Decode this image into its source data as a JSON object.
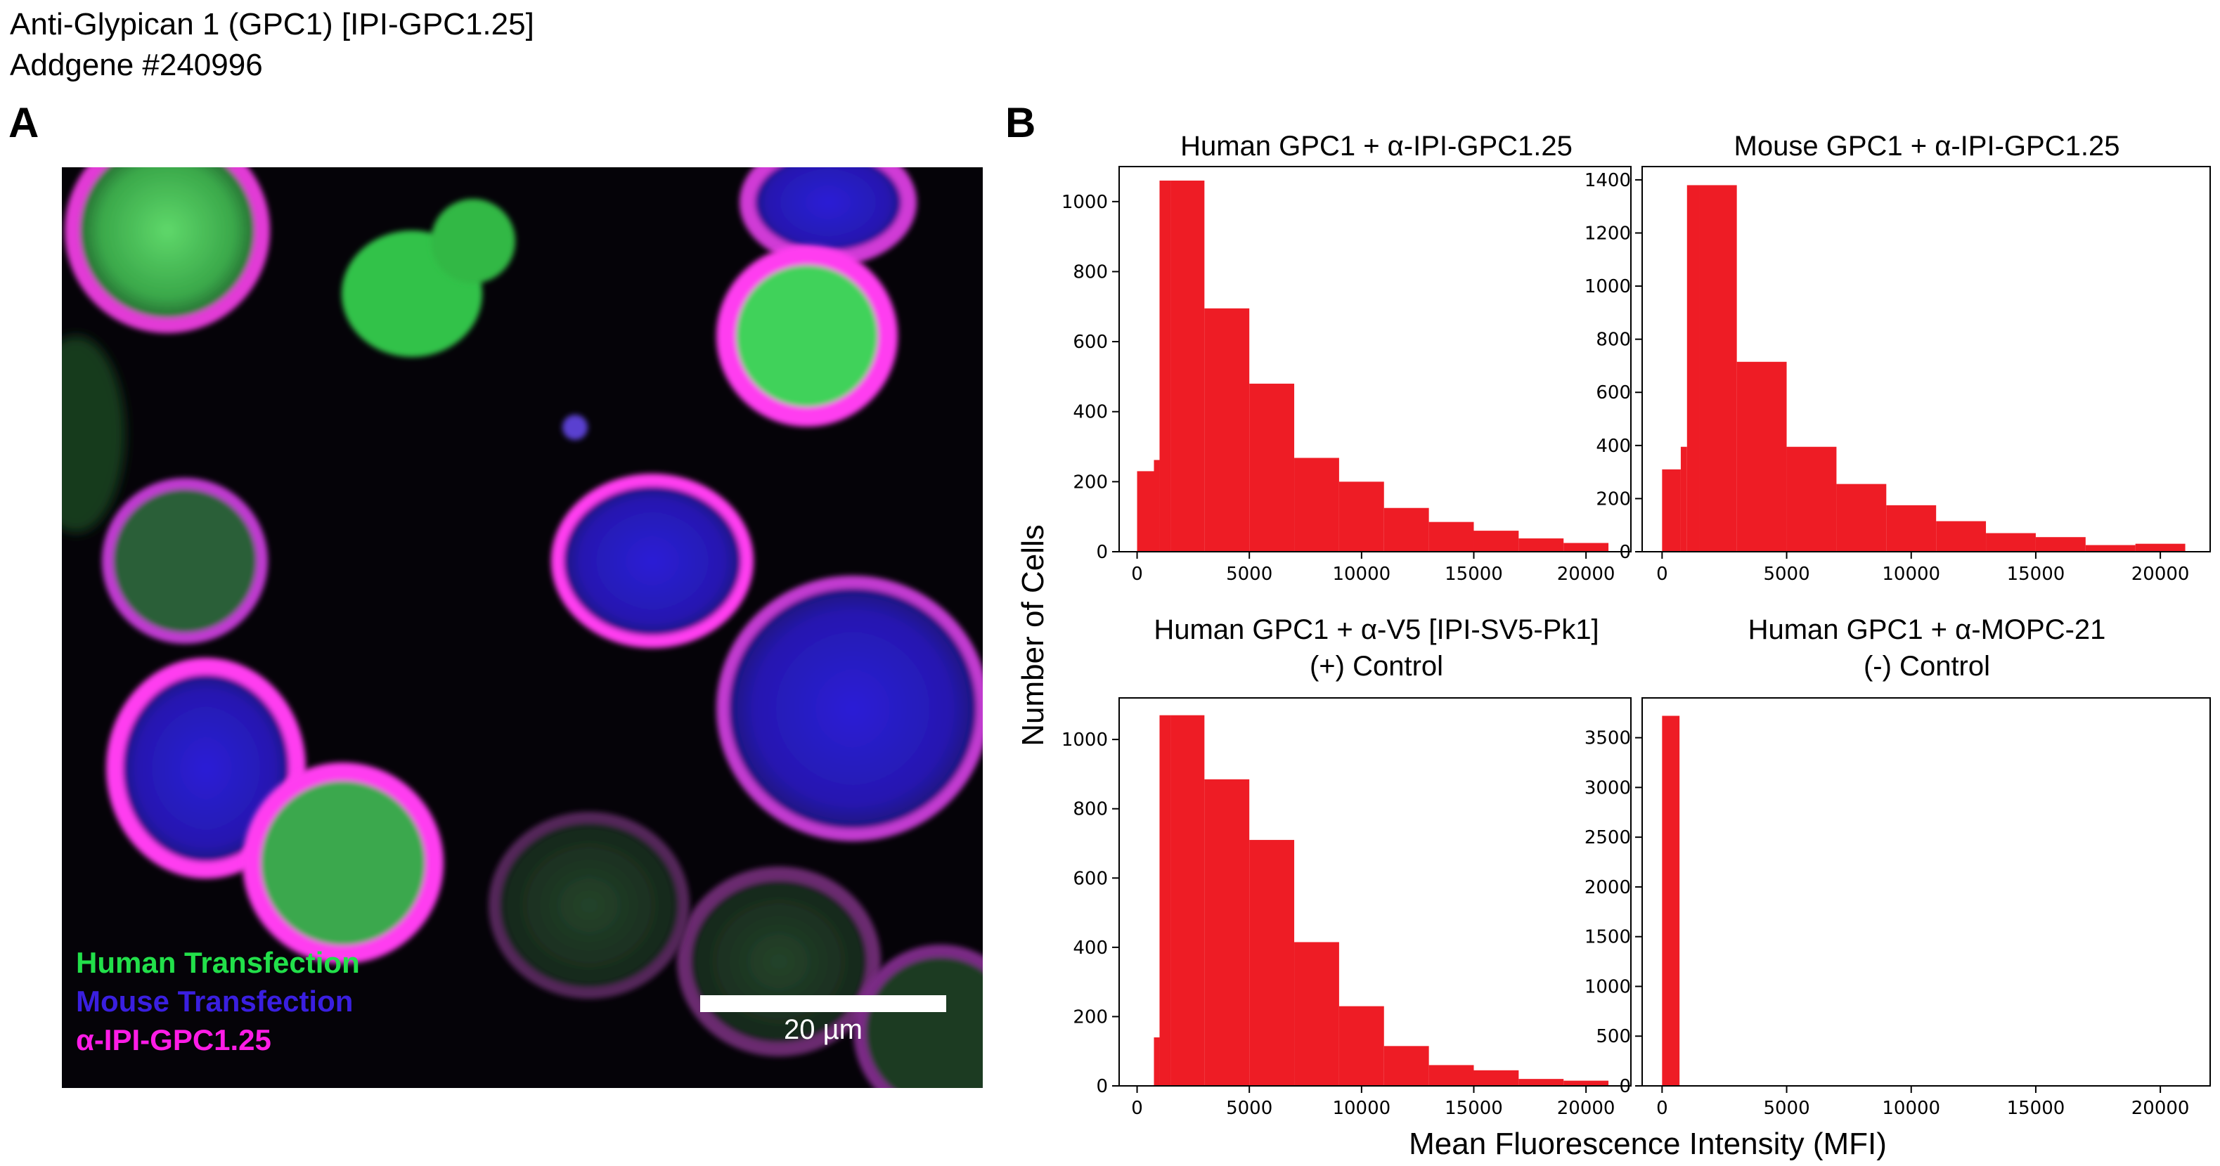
{
  "header": {
    "line1": "Anti-Glypican 1 (GPC1) [IPI-GPC1.25]",
    "line2": "Addgene #240996"
  },
  "panel_a": {
    "letter": "A",
    "legend": [
      {
        "label": "Human Transfection",
        "color": "#22e04a"
      },
      {
        "label": "Mouse Transfection",
        "color": "#3a1fe0"
      },
      {
        "label": "α-IPI-GPC1.25",
        "color": "#ff1ce6"
      }
    ],
    "scale_bar": "20 µm"
  },
  "panel_b": {
    "letter": "B",
    "ylabel": "Number of Cells",
    "xlabel": "Mean Fluorescence Intensity (MFI)",
    "bar_color": "#ee1c25"
  },
  "chart_data": [
    {
      "type": "bar",
      "title": "Human GPC1 + α-IPI-GPC1.25",
      "title_line2": "",
      "bin_edges": [
        0,
        750,
        1000,
        1500,
        3000,
        5000,
        7000,
        9000,
        11000,
        13000,
        15000,
        17000,
        19000,
        21000
      ],
      "values": [
        230,
        262,
        1060,
        1060,
        695,
        480,
        268,
        200,
        125,
        85,
        60,
        38,
        25
      ],
      "xlim": [
        -800,
        22000
      ],
      "ylim": [
        0,
        1100
      ],
      "xticks": [
        0,
        5000,
        10000,
        15000,
        20000
      ],
      "yticks": [
        0,
        200,
        400,
        600,
        800,
        1000
      ]
    },
    {
      "type": "bar",
      "title": "Mouse GPC1 + α-IPI-GPC1.25",
      "title_line2": "",
      "bin_edges": [
        0,
        750,
        1000,
        1500,
        3000,
        5000,
        7000,
        9000,
        11000,
        13000,
        15000,
        17000,
        19000,
        21000
      ],
      "values": [
        310,
        395,
        1380,
        1380,
        715,
        395,
        255,
        175,
        115,
        70,
        55,
        25,
        30
      ],
      "xlim": [
        -800,
        22000
      ],
      "ylim": [
        0,
        1450
      ],
      "xticks": [
        0,
        5000,
        10000,
        15000,
        20000
      ],
      "yticks": [
        0,
        200,
        400,
        600,
        800,
        1000,
        1200,
        1400
      ]
    },
    {
      "type": "bar",
      "title": "Human GPC1 + α-V5 [IPI-SV5-Pk1]",
      "title_line2": "(+) Control",
      "bin_edges": [
        0,
        750,
        1000,
        1500,
        3000,
        5000,
        7000,
        9000,
        11000,
        13000,
        15000,
        17000,
        19000,
        21000
      ],
      "values": [
        0,
        140,
        1070,
        1070,
        885,
        710,
        415,
        230,
        115,
        60,
        45,
        20,
        15
      ],
      "xlim": [
        -800,
        22000
      ],
      "ylim": [
        0,
        1120
      ],
      "xticks": [
        0,
        5000,
        10000,
        15000,
        20000
      ],
      "yticks": [
        0,
        200,
        400,
        600,
        800,
        1000
      ]
    },
    {
      "type": "bar",
      "title": "Human GPC1 + α-MOPC-21",
      "title_line2": "(-) Control",
      "bin_edges": [
        0,
        700
      ],
      "values": [
        3720
      ],
      "xlim": [
        -800,
        22000
      ],
      "ylim": [
        0,
        3900
      ],
      "xticks": [
        0,
        5000,
        10000,
        15000,
        20000
      ],
      "yticks": [
        0,
        500,
        1000,
        1500,
        2000,
        2500,
        3000,
        3500
      ]
    }
  ]
}
